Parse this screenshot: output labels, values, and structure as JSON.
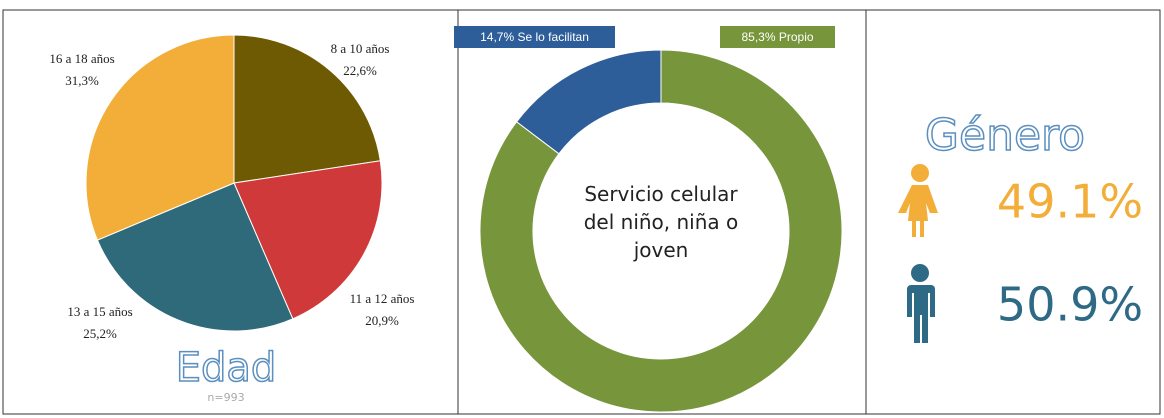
{
  "chart_data": [
    {
      "type": "pie",
      "title": "Edad",
      "subtitle": "n=993",
      "categories": [
        "8 a 10 años",
        "11 a 12 años",
        "13 a 15 años",
        "16 a 18 años"
      ],
      "values": [
        22.6,
        20.9,
        25.2,
        31.3
      ],
      "value_labels": [
        "22,6%",
        "20,9%",
        "25,2%",
        "31,3%"
      ],
      "colors": [
        "#6e5a02",
        "#d0393a",
        "#2e6a7a",
        "#f2ae38"
      ]
    },
    {
      "type": "donut",
      "title": "Servicio celular del niño, niña o joven",
      "categories": [
        "Se lo facilitan",
        "Propio"
      ],
      "values": [
        14.7,
        85.3
      ],
      "value_labels": [
        "14,7%",
        "85,3%"
      ],
      "colors": [
        "#2e5e99",
        "#77953b"
      ]
    },
    {
      "type": "stat",
      "title": "Género",
      "values": [
        49.1,
        50.9
      ],
      "value_labels": [
        "49.1%",
        "50.9%"
      ],
      "colors": [
        "#f2ae38",
        "#2e6a85"
      ]
    }
  ]
}
